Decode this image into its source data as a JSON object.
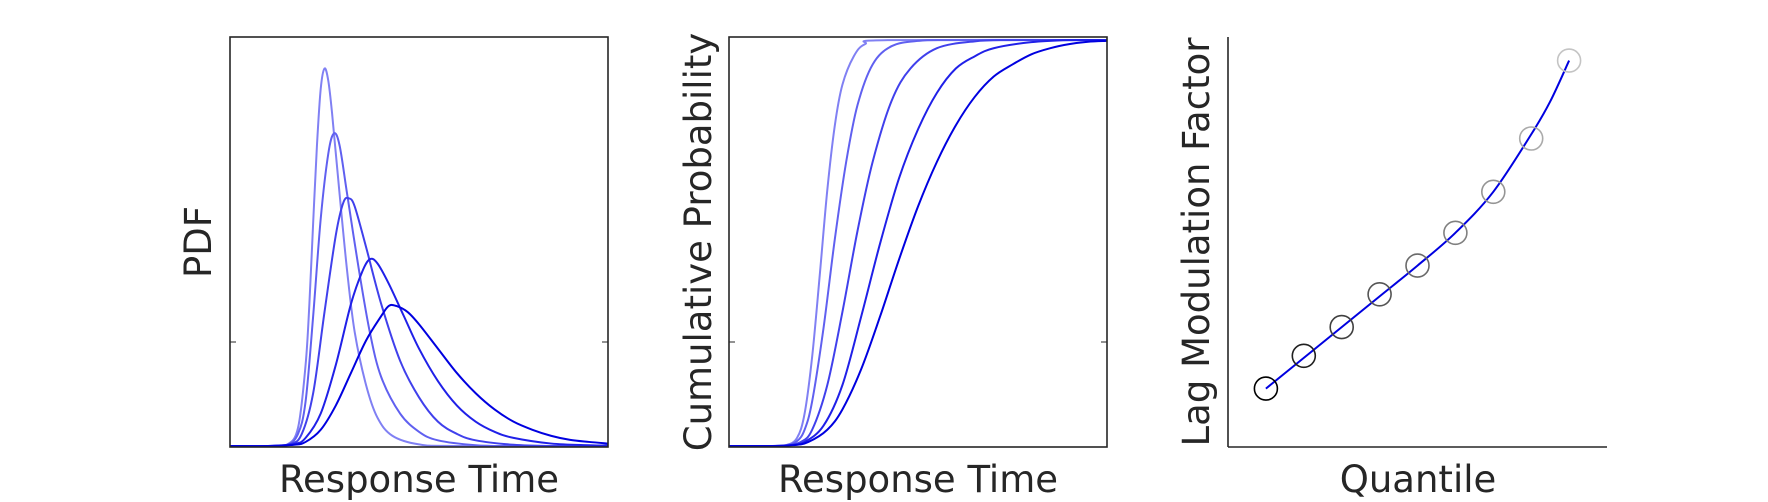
{
  "chart_data": [
    {
      "type": "line",
      "title": "",
      "xlabel": "Response Time",
      "ylabel": "PDF",
      "axes_box": "full",
      "ticks": "none",
      "xlim": [
        0,
        10
      ],
      "ylim": [
        0,
        1.0
      ],
      "series": [
        {
          "color": "#8080f3",
          "values": [
            [
              0,
              0
            ],
            [
              1,
              0
            ],
            [
              1.5,
              0.003
            ],
            [
              1.8,
              0.045
            ],
            [
              2.0,
              0.2
            ],
            [
              2.1,
              0.35
            ],
            [
              2.2,
              0.55
            ],
            [
              2.3,
              0.74
            ],
            [
              2.4,
              0.88
            ],
            [
              2.5,
              0.93
            ],
            [
              2.6,
              0.9
            ],
            [
              2.7,
              0.82
            ],
            [
              2.9,
              0.62
            ],
            [
              3.1,
              0.43
            ],
            [
              3.3,
              0.28
            ],
            [
              3.6,
              0.15
            ],
            [
              3.9,
              0.07
            ],
            [
              4.3,
              0.025
            ],
            [
              5.0,
              0.004
            ],
            [
              6.0,
              0
            ],
            [
              10,
              0
            ]
          ]
        },
        {
          "color": "#6060f0",
          "values": [
            [
              0,
              0
            ],
            [
              1,
              0
            ],
            [
              1.5,
              0.002
            ],
            [
              1.8,
              0.03
            ],
            [
              2.0,
              0.11
            ],
            [
              2.2,
              0.32
            ],
            [
              2.4,
              0.56
            ],
            [
              2.6,
              0.72
            ],
            [
              2.75,
              0.77
            ],
            [
              2.9,
              0.74
            ],
            [
              3.1,
              0.62
            ],
            [
              3.4,
              0.44
            ],
            [
              3.7,
              0.28
            ],
            [
              4.0,
              0.17
            ],
            [
              4.5,
              0.08
            ],
            [
              5.0,
              0.035
            ],
            [
              5.5,
              0.014
            ],
            [
              6.5,
              0.002
            ],
            [
              7.5,
              0
            ],
            [
              10,
              0
            ]
          ]
        },
        {
          "color": "#4040ec",
          "values": [
            [
              0,
              0
            ],
            [
              1,
              0
            ],
            [
              1.6,
              0.005
            ],
            [
              1.9,
              0.03
            ],
            [
              2.2,
              0.13
            ],
            [
              2.5,
              0.33
            ],
            [
              2.8,
              0.52
            ],
            [
              3.0,
              0.6
            ],
            [
              3.15,
              0.61
            ],
            [
              3.3,
              0.59
            ],
            [
              3.6,
              0.49
            ],
            [
              4.0,
              0.35
            ],
            [
              4.5,
              0.21
            ],
            [
              5.0,
              0.12
            ],
            [
              5.5,
              0.06
            ],
            [
              6.0,
              0.03
            ],
            [
              6.5,
              0.014
            ],
            [
              7.5,
              0.003
            ],
            [
              8.5,
              0
            ],
            [
              10,
              0
            ]
          ]
        },
        {
          "color": "#2020e8",
          "values": [
            [
              0,
              0
            ],
            [
              1,
              0
            ],
            [
              1.7,
              0.005
            ],
            [
              2.0,
              0.02
            ],
            [
              2.4,
              0.08
            ],
            [
              2.8,
              0.2
            ],
            [
              3.2,
              0.35
            ],
            [
              3.5,
              0.43
            ],
            [
              3.7,
              0.46
            ],
            [
              3.9,
              0.45
            ],
            [
              4.2,
              0.4
            ],
            [
              4.6,
              0.32
            ],
            [
              5.0,
              0.24
            ],
            [
              5.5,
              0.16
            ],
            [
              6.0,
              0.1
            ],
            [
              6.5,
              0.06
            ],
            [
              7.0,
              0.035
            ],
            [
              7.5,
              0.02
            ],
            [
              8.5,
              0.006
            ],
            [
              9.5,
              0.002
            ],
            [
              10,
              0.001
            ]
          ]
        },
        {
          "color": "#0000e0",
          "values": [
            [
              0,
              0
            ],
            [
              1,
              0
            ],
            [
              1.7,
              0.003
            ],
            [
              2.0,
              0.01
            ],
            [
              2.4,
              0.04
            ],
            [
              2.8,
              0.1
            ],
            [
              3.2,
              0.18
            ],
            [
              3.6,
              0.26
            ],
            [
              4.0,
              0.32
            ],
            [
              4.2,
              0.345
            ],
            [
              4.4,
              0.345
            ],
            [
              4.7,
              0.33
            ],
            [
              5.0,
              0.3
            ],
            [
              5.5,
              0.24
            ],
            [
              6.0,
              0.18
            ],
            [
              6.5,
              0.13
            ],
            [
              7.0,
              0.09
            ],
            [
              7.5,
              0.06
            ],
            [
              8.0,
              0.04
            ],
            [
              8.5,
              0.025
            ],
            [
              9.0,
              0.015
            ],
            [
              9.5,
              0.01
            ],
            [
              10,
              0.006
            ]
          ]
        }
      ]
    },
    {
      "type": "line",
      "title": "",
      "xlabel": "Response Time",
      "ylabel": "Cumulative Probability",
      "axes_box": "full",
      "ticks": "none",
      "xlim": [
        0,
        10
      ],
      "ylim": [
        0,
        1.0
      ],
      "series": [
        {
          "color": "#8080f3",
          "values": [
            [
              0,
              0
            ],
            [
              1.0,
              0
            ],
            [
              1.5,
              0.002
            ],
            [
              1.8,
              0.02
            ],
            [
              2.0,
              0.08
            ],
            [
              2.2,
              0.22
            ],
            [
              2.4,
              0.42
            ],
            [
              2.6,
              0.63
            ],
            [
              2.8,
              0.79
            ],
            [
              3.0,
              0.89
            ],
            [
              3.3,
              0.96
            ],
            [
              3.6,
              0.99
            ],
            [
              4.2,
              1.0
            ],
            [
              10,
              1.0
            ]
          ]
        },
        {
          "color": "#6060f0",
          "values": [
            [
              0,
              0
            ],
            [
              1.0,
              0
            ],
            [
              1.5,
              0.002
            ],
            [
              1.8,
              0.012
            ],
            [
              2.0,
              0.04
            ],
            [
              2.2,
              0.11
            ],
            [
              2.5,
              0.29
            ],
            [
              2.8,
              0.51
            ],
            [
              3.1,
              0.7
            ],
            [
              3.4,
              0.84
            ],
            [
              3.8,
              0.94
            ],
            [
              4.3,
              0.985
            ],
            [
              5.0,
              0.998
            ],
            [
              6.0,
              1.0
            ],
            [
              10,
              1.0
            ]
          ]
        },
        {
          "color": "#4040ec",
          "values": [
            [
              0,
              0
            ],
            [
              1.0,
              0
            ],
            [
              1.5,
              0.001
            ],
            [
              1.9,
              0.01
            ],
            [
              2.2,
              0.04
            ],
            [
              2.6,
              0.15
            ],
            [
              3.0,
              0.33
            ],
            [
              3.4,
              0.53
            ],
            [
              3.8,
              0.7
            ],
            [
              4.3,
              0.85
            ],
            [
              4.8,
              0.93
            ],
            [
              5.5,
              0.98
            ],
            [
              6.5,
              0.997
            ],
            [
              7.5,
              1.0
            ],
            [
              10,
              1.0
            ]
          ]
        },
        {
          "color": "#2020e8",
          "values": [
            [
              0,
              0
            ],
            [
              1.0,
              0
            ],
            [
              1.6,
              0.002
            ],
            [
              2.0,
              0.01
            ],
            [
              2.5,
              0.05
            ],
            [
              3.0,
              0.15
            ],
            [
              3.5,
              0.32
            ],
            [
              4.0,
              0.5
            ],
            [
              4.5,
              0.66
            ],
            [
              5.0,
              0.78
            ],
            [
              5.5,
              0.87
            ],
            [
              6.0,
              0.93
            ],
            [
              6.5,
              0.96
            ],
            [
              7.0,
              0.98
            ],
            [
              8.0,
              0.995
            ],
            [
              9.0,
              1.0
            ],
            [
              10,
              1.0
            ]
          ]
        },
        {
          "color": "#0000e0",
          "values": [
            [
              0,
              0
            ],
            [
              1.0,
              0
            ],
            [
              1.7,
              0.002
            ],
            [
              2.1,
              0.01
            ],
            [
              2.6,
              0.04
            ],
            [
              3.0,
              0.09
            ],
            [
              3.5,
              0.19
            ],
            [
              4.0,
              0.32
            ],
            [
              4.5,
              0.46
            ],
            [
              5.0,
              0.59
            ],
            [
              5.5,
              0.7
            ],
            [
              6.0,
              0.79
            ],
            [
              6.5,
              0.86
            ],
            [
              7.0,
              0.91
            ],
            [
              7.5,
              0.94
            ],
            [
              8.0,
              0.965
            ],
            [
              8.5,
              0.98
            ],
            [
              9.0,
              0.99
            ],
            [
              9.5,
              0.996
            ],
            [
              10,
              0.998
            ]
          ]
        }
      ]
    },
    {
      "type": "scatter",
      "title": "",
      "xlabel": "Quantile",
      "ylabel": "Lag Modulation Factor",
      "axes_box": "left-bottom",
      "ticks": "none",
      "xlim": [
        0,
        1
      ],
      "ylim": [
        0,
        1
      ],
      "points": {
        "x": [
          0.1,
          0.2,
          0.3,
          0.4,
          0.5,
          0.6,
          0.7,
          0.8,
          0.9
        ],
        "y": [
          0.14,
          0.22,
          0.29,
          0.37,
          0.44,
          0.52,
          0.62,
          0.75,
          0.94
        ],
        "colors": [
          "#000000",
          "#202020",
          "#404040",
          "#555555",
          "#6a6a6a",
          "#808080",
          "#959595",
          "#aaaaaa",
          "#c4c4c4"
        ]
      },
      "fit_line": {
        "color": "#0000e0",
        "x": [
          0.1,
          0.2,
          0.3,
          0.4,
          0.5,
          0.6,
          0.7,
          0.8,
          0.85,
          0.9
        ],
        "y": [
          0.14,
          0.215,
          0.29,
          0.365,
          0.44,
          0.52,
          0.62,
          0.76,
          0.84,
          0.94
        ]
      }
    }
  ]
}
